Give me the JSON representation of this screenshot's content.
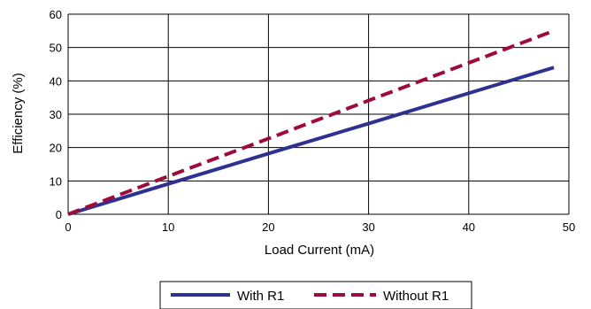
{
  "chart_data": {
    "type": "line",
    "xlabel": "Load Current (mA)",
    "ylabel": "Efficiency (%)",
    "xlim": [
      0,
      50
    ],
    "ylim": [
      0,
      60
    ],
    "x_ticks": [
      0,
      10,
      20,
      30,
      40,
      50
    ],
    "y_ticks": [
      0,
      10,
      20,
      30,
      40,
      50,
      60
    ],
    "grid": true,
    "legend_position": "bottom-center",
    "series": [
      {
        "name": "With R1",
        "color": "#2e3192",
        "style": "solid",
        "x": [
          0,
          10,
          20,
          30,
          40,
          48.5
        ],
        "y": [
          0,
          9.1,
          18.2,
          27.2,
          36.3,
          44
        ]
      },
      {
        "name": "Without R1",
        "color": "#9e0b3b",
        "style": "dashed",
        "x": [
          0,
          10,
          20,
          30,
          40,
          48.5
        ],
        "y": [
          0,
          11.4,
          22.7,
          34.1,
          45.4,
          55
        ]
      }
    ]
  }
}
